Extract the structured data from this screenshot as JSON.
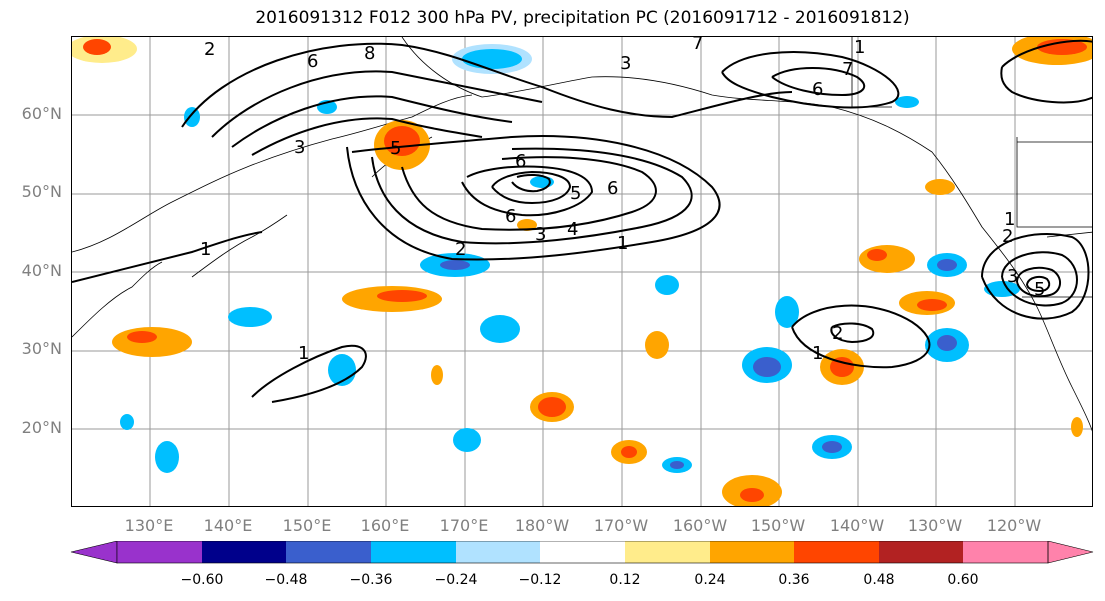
{
  "title": "2016091312 F012 300 hPa PV, precipitation PC (2016091712 - 2016091812)",
  "lat_labels": [
    "60°N",
    "50°N",
    "40°N",
    "30°N",
    "20°N"
  ],
  "lon_labels": [
    "130°E",
    "140°E",
    "150°E",
    "160°E",
    "170°E",
    "180°W",
    "170°W",
    "160°W",
    "150°W",
    "140°W",
    "130°W",
    "120°W"
  ],
  "contour_labels": [
    "2",
    "8",
    "6",
    "5",
    "3",
    "1",
    "6",
    "5",
    "6",
    "6",
    "3",
    "4",
    "2",
    "1",
    "7",
    "3",
    "6",
    "7",
    "1",
    "2",
    "1",
    "1",
    "3",
    "5",
    "1",
    "2"
  ],
  "colorbar": {
    "tick_labels": [
      "−0.60",
      "−0.48",
      "−0.36",
      "−0.24",
      "−0.12",
      "0.12",
      "0.24",
      "0.36",
      "0.48",
      "0.60"
    ],
    "colors": [
      "#9932CC",
      "#00008B",
      "#3A5FCD",
      "#00BFFF",
      "#B0E2FF",
      "#FFFFFF",
      "#FFEC8B",
      "#FFA500",
      "#FF4500",
      "#B22222",
      "#FF82AB"
    ]
  }
}
